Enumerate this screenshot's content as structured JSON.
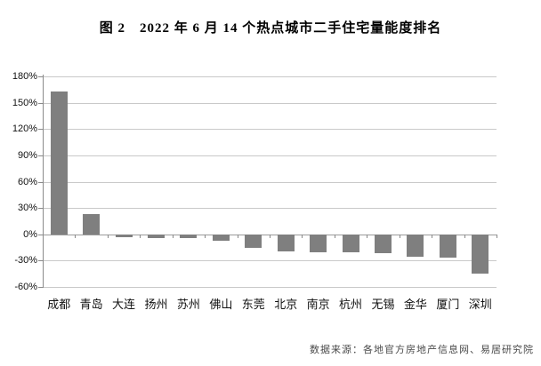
{
  "figure": {
    "title": "图 2　2022 年 6 月 14 个热点城市二手住宅量能度排名",
    "source_note": "数据来源：各地官方房地产信息网、易居研究院"
  },
  "chart_data": {
    "type": "bar",
    "title": "图 2　2022 年 6 月 14 个热点城市二手住宅量能度排名",
    "categories": [
      "成都",
      "青岛",
      "大连",
      "扬州",
      "苏州",
      "佛山",
      "东莞",
      "北京",
      "南京",
      "杭州",
      "无锡",
      "金华",
      "厦门",
      "深圳"
    ],
    "values": [
      163,
      23,
      -3,
      -4,
      -4,
      -7,
      -15,
      -19,
      -21,
      -21,
      -22,
      -26,
      -27,
      -45
    ],
    "unit": "%",
    "xlabel": "",
    "ylabel": "",
    "ylim": [
      -60,
      180
    ],
    "yticks": [
      180,
      150,
      120,
      90,
      60,
      30,
      0,
      -30,
      -60
    ],
    "ytick_labels": [
      "180%",
      "150%",
      "120%",
      "90%",
      "60%",
      "30%",
      "0%",
      "-30%",
      "-60%"
    ],
    "grid": true,
    "legend": "none",
    "bar_color": "#7f7f7f",
    "gridline_color": "#c9c9c9",
    "zero_line_color": "#9b9b9b",
    "axis_color": "#8a8a8a",
    "source": "数据来源：各地官方房地产信息网、易居研究院"
  }
}
